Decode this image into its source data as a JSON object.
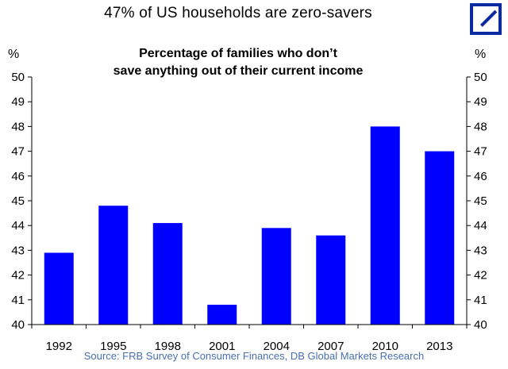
{
  "headline": "47% of US households are zero-savers",
  "logo": {
    "icon": "deutsche-bank-logo-icon",
    "color": "#0a2a9f"
  },
  "chart_data": {
    "type": "bar",
    "title": "Percentage of families who don’t save anything out of their current income",
    "title_lines": [
      "Percentage of families who don’t",
      "save anything out of their current income"
    ],
    "left_unit": "%",
    "right_unit": "%",
    "categories": [
      "1992",
      "1995",
      "1998",
      "2001",
      "2004",
      "2007",
      "2010",
      "2013"
    ],
    "values": [
      42.9,
      44.8,
      44.1,
      40.8,
      43.9,
      43.6,
      48.0,
      47.0
    ],
    "ylim": [
      40,
      50
    ],
    "yticks": [
      "40",
      "41",
      "42",
      "43",
      "44",
      "45",
      "46",
      "47",
      "48",
      "49",
      "50"
    ],
    "secondary_y_axis": true,
    "bar_color": "#0000ff",
    "grid": false,
    "legend": "none"
  },
  "source": "Source: FRB Survey of Consumer Finances, DB Global Markets Research"
}
